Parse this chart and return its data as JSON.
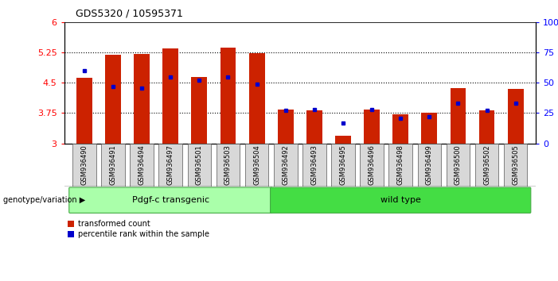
{
  "title": "GDS5320 / 10595371",
  "samples": [
    "GSM936490",
    "GSM936491",
    "GSM936494",
    "GSM936497",
    "GSM936501",
    "GSM936503",
    "GSM936504",
    "GSM936492",
    "GSM936493",
    "GSM936495",
    "GSM936496",
    "GSM936498",
    "GSM936499",
    "GSM936500",
    "GSM936502",
    "GSM936505"
  ],
  "transformed_count": [
    4.62,
    5.2,
    5.21,
    5.35,
    4.65,
    5.37,
    5.24,
    3.84,
    3.82,
    3.18,
    3.83,
    3.72,
    3.75,
    4.38,
    3.82,
    4.35
  ],
  "percentile_rank": [
    60,
    47,
    46,
    55,
    52,
    55,
    49,
    27,
    28,
    17,
    28,
    21,
    22,
    33,
    27,
    33
  ],
  "groups": [
    {
      "label": "Pdgf-c transgenic",
      "start": 0,
      "end": 7,
      "color": "#AAFFAA"
    },
    {
      "label": "wild type",
      "start": 7,
      "end": 16,
      "color": "#44DD44"
    }
  ],
  "ylim_left": [
    3.0,
    6.0
  ],
  "yticks_left": [
    3.0,
    3.75,
    4.5,
    5.25,
    6.0
  ],
  "ytick_labels_left": [
    "3",
    "3.75",
    "4.5",
    "5.25",
    "6"
  ],
  "ylim_right": [
    0,
    100
  ],
  "yticks_right": [
    0,
    25,
    50,
    75,
    100
  ],
  "ytick_labels_right": [
    "0",
    "25",
    "50",
    "75",
    "100%"
  ],
  "bar_color": "#CC2200",
  "dot_color": "#0000CC",
  "bar_width": 0.55,
  "bg_color": "#FFFFFF",
  "plot_bg": "#FFFFFF",
  "legend_transformed": "transformed count",
  "legend_percentile": "percentile rank within the sample",
  "genotype_label": "genotype/variation"
}
